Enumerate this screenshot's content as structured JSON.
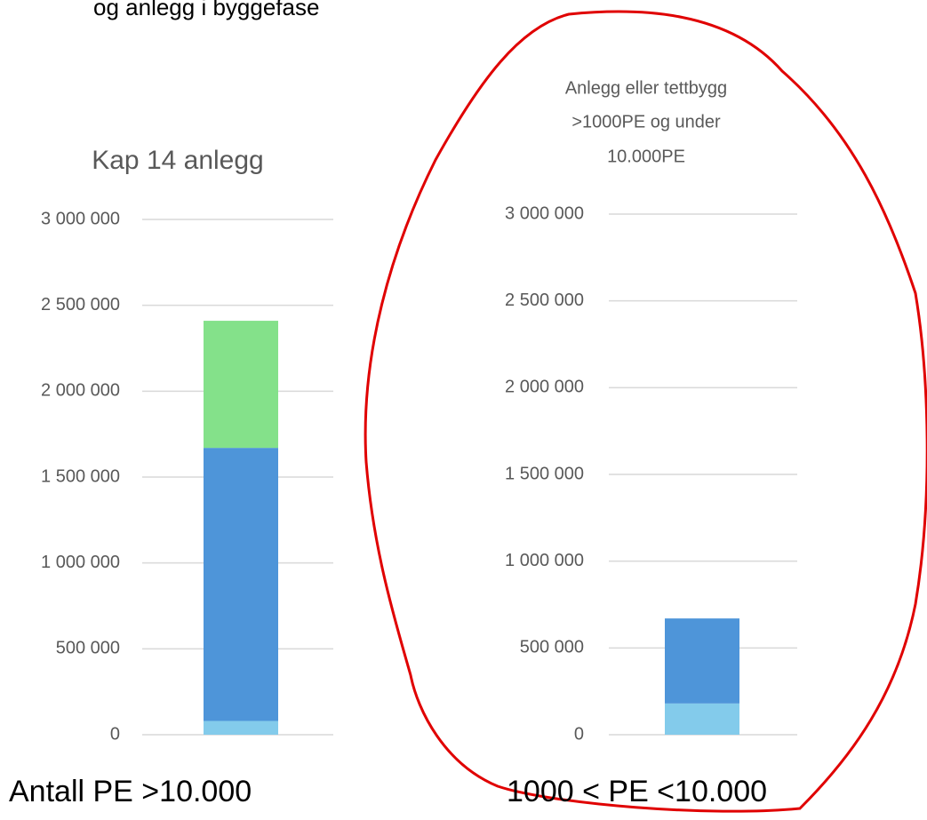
{
  "header_text": "og anlegg i byggefase",
  "chart_data": [
    {
      "type": "bar",
      "stacked": true,
      "title": [
        "Kap 14 anlegg"
      ],
      "caption": "Antall PE >10.000",
      "categories": [
        null
      ],
      "series": [
        {
          "color": "#83cbeb",
          "values": [
            80000
          ]
        },
        {
          "color": "#4e95d9",
          "values": [
            1590000
          ]
        },
        {
          "color": "#84e18a",
          "values": [
            740000
          ]
        }
      ],
      "ylim": [
        0,
        3000000
      ],
      "yticks": [
        {
          "value": 0,
          "label": "0"
        },
        {
          "value": 500000,
          "label": "500 000"
        },
        {
          "value": 1000000,
          "label": "1 000 000"
        },
        {
          "value": 1500000,
          "label": "1 500 000"
        },
        {
          "value": 2000000,
          "label": "2 000 000"
        },
        {
          "value": 2500000,
          "label": "2 500 000"
        },
        {
          "value": 3000000,
          "label": "3 000 000"
        }
      ],
      "grid": true
    },
    {
      "type": "bar",
      "stacked": true,
      "title": [
        "Anlegg eller tettbygg",
        ">1000PE og under",
        "10.000PE"
      ],
      "caption": "1000 < PE <10.000",
      "categories": [
        null
      ],
      "series": [
        {
          "color": "#83cbeb",
          "values": [
            180000
          ]
        },
        {
          "color": "#4e95d9",
          "values": [
            490000
          ]
        }
      ],
      "ylim": [
        0,
        3000000
      ],
      "yticks": [
        {
          "value": 0,
          "label": "0"
        },
        {
          "value": 500000,
          "label": "500 000"
        },
        {
          "value": 1000000,
          "label": "1 000 000"
        },
        {
          "value": 1500000,
          "label": "1 500 000"
        },
        {
          "value": 2000000,
          "label": "2 000 000"
        },
        {
          "value": 2500000,
          "label": "2 500 000"
        },
        {
          "value": 3000000,
          "label": "3 000 000"
        }
      ],
      "grid": true
    }
  ]
}
